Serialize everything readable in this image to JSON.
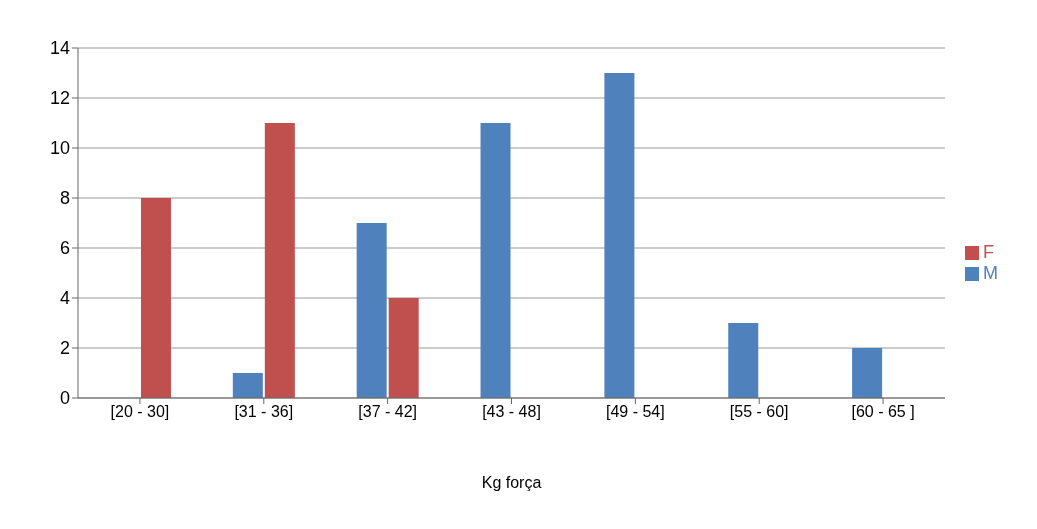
{
  "chart_data": {
    "type": "bar",
    "categories": [
      "[20 - 30]",
      "[31 - 36]",
      "[37 - 42]",
      "[43 - 48]",
      "[49 - 54]",
      "[55 - 60]",
      "[60 - 65 ]"
    ],
    "series": [
      {
        "name": "M",
        "color": "#4f81bd",
        "values": [
          0,
          1,
          7,
          11,
          13,
          3,
          2
        ]
      },
      {
        "name": "F",
        "color": "#c0504d",
        "values": [
          8,
          11,
          4,
          0,
          0,
          0,
          0
        ]
      }
    ],
    "xlabel": "Kg força",
    "ylim": [
      0,
      14
    ],
    "yticks": [
      0,
      2,
      4,
      6,
      8,
      10,
      12,
      14
    ],
    "grid": "y",
    "legend": "right"
  }
}
